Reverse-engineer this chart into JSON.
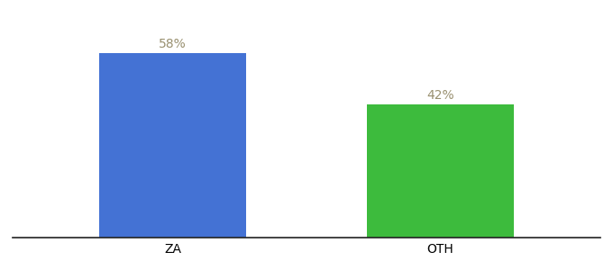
{
  "categories": [
    "ZA",
    "OTH"
  ],
  "values": [
    58,
    42
  ],
  "bar_colors": [
    "#4472d4",
    "#3dbb3d"
  ],
  "label_texts": [
    "58%",
    "42%"
  ],
  "label_color": "#999070",
  "ylim": [
    0,
    68
  ],
  "background_color": "#ffffff",
  "tick_label_fontsize": 10,
  "bar_label_fontsize": 10,
  "bar_width": 0.55,
  "bar_positions": [
    1,
    2
  ],
  "xlim": [
    0.4,
    2.6
  ]
}
